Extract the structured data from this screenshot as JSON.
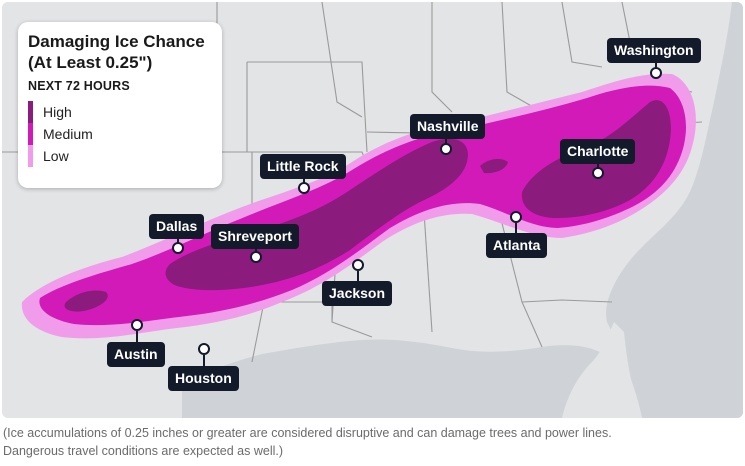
{
  "legend": {
    "title": "Damaging Ice Chance\n(At Least 0.25\")",
    "subtitle": "NEXT 72 HOURS",
    "levels": [
      {
        "label": "High",
        "color": "#8c1b7e"
      },
      {
        "label": "Medium",
        "color": "#d21ab8"
      },
      {
        "label": "Low",
        "color": "#f19cea"
      }
    ]
  },
  "cities": {
    "washington": "Washington",
    "nashville": "Nashville",
    "charlotte": "Charlotte",
    "little_rock": "Little Rock",
    "dallas": "Dallas",
    "shreveport": "Shreveport",
    "atlanta": "Atlanta",
    "jackson": "Jackson",
    "austin": "Austin",
    "houston": "Houston"
  },
  "colors": {
    "land": "#e3e4e6",
    "water": "#cfd3d7",
    "border": "#9a9a9a",
    "label_bg": "#131a2a"
  },
  "caption": "(Ice accumulations of 0.25 inches or greater are considered disruptive and can damage trees and power lines.\nDangerous travel conditions are expected as well.)"
}
